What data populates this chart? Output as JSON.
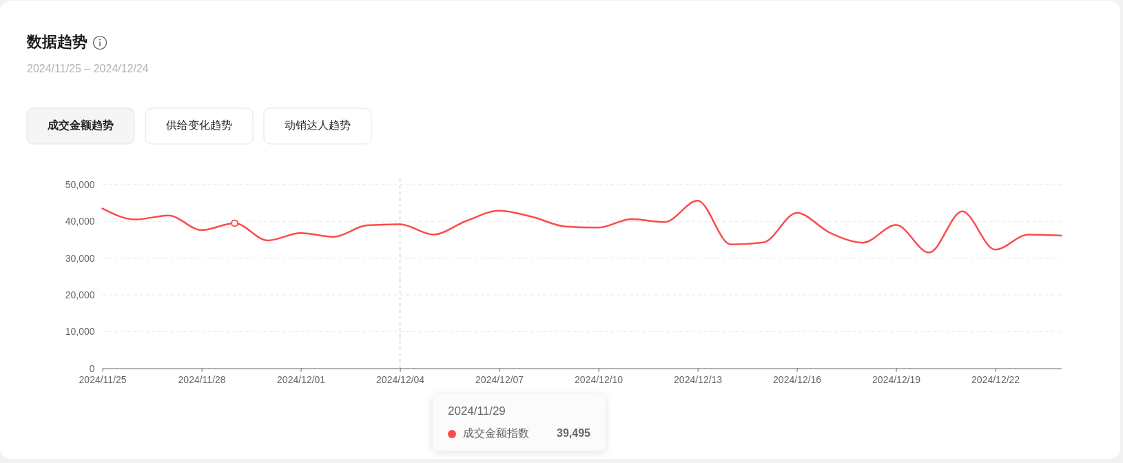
{
  "chart_data": {
    "type": "line",
    "title": "数据趋势",
    "subtitle": "2024/11/25 – 2024/12/24",
    "annotations": [
      "成交金额趋势",
      "供给变化趋势",
      "动销达人趋势",
      "2024/11/29",
      "39,495"
    ],
    "x": [
      "2024-11-25",
      "2024-11-26",
      "2024-11-27",
      "2024-11-28",
      "2024-11-29",
      "2024-11-30",
      "2024-12-01",
      "2024-12-02",
      "2024-12-03",
      "2024-12-04",
      "2024-12-05",
      "2024-12-06",
      "2024-12-07",
      "2024-12-08",
      "2024-12-09",
      "2024-12-10",
      "2024-12-11",
      "2024-12-12",
      "2024-12-13",
      "2024-12-14",
      "2024-12-15",
      "2024-12-16",
      "2024-12-17",
      "2024-12-18",
      "2024-12-19",
      "2024-12-20",
      "2024-12-21",
      "2024-12-22",
      "2024-12-23",
      "2024-12-24"
    ],
    "series": [
      {
        "name": "成交金额指数",
        "color": "#fe4a4a",
        "values": [
          43500,
          40500,
          41600,
          37600,
          39495,
          34800,
          36800,
          35800,
          38900,
          39200,
          36400,
          40100,
          42900,
          41200,
          38600,
          38300,
          40600,
          39800,
          45600,
          33700,
          34300,
          42300,
          36900,
          34200,
          39000,
          31500,
          42700,
          32300,
          36400,
          36100
        ]
      },
      {
        "type": "scatter",
        "x": [
          "2024-11-29"
        ],
        "color": "#fe4a4a",
        "marker": "circle",
        "values": [
          39495
        ]
      }
    ],
    "xlim": [
      "2024-11-25",
      "2024-12-24"
    ],
    "xticks": [
      {
        "value": "2024-11-25",
        "label": "2024/11/25"
      },
      {
        "value": "2024-11-28",
        "label": "2024/11/28"
      },
      {
        "value": "2024-12-01",
        "label": "2024/12/01"
      },
      {
        "value": "2024-12-04",
        "label": "2024/12/04"
      },
      {
        "value": "2024-12-07",
        "label": "2024/12/07"
      },
      {
        "value": "2024-12-10",
        "label": "2024/12/10"
      },
      {
        "value": "2024-12-13",
        "label": "2024/12/13"
      },
      {
        "value": "2024-12-16",
        "label": "2024/12/16"
      },
      {
        "value": "2024-12-19",
        "label": "2024/12/19"
      },
      {
        "value": "2024-12-22",
        "label": "2024/12/22"
      }
    ],
    "ylim": [
      0,
      50000
    ],
    "yticks": [
      0,
      {
        "value": 10000,
        "label": "10,000"
      },
      {
        "value": 20000,
        "label": "20,000"
      },
      {
        "value": 30000,
        "label": "30,000"
      },
      {
        "value": 40000,
        "label": "40,000"
      },
      {
        "value": 50000,
        "label": "50,000"
      }
    ],
    "grid": "y",
    "ref_lines": [
      {
        "axis": "x",
        "value": "2024-12-04",
        "color": "#c3c8d4",
        "line_style": "dashed"
      }
    ]
  }
}
